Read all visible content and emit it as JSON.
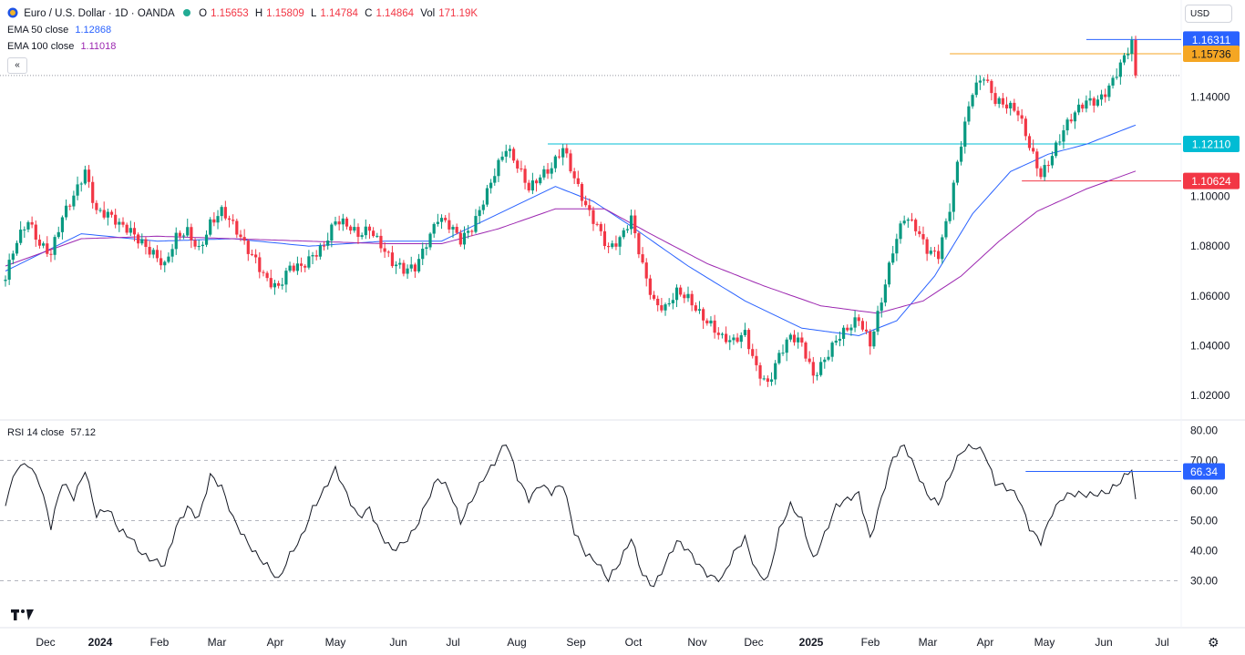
{
  "header": {
    "symbol_title": "Euro / U.S. Dollar · 1D · OANDA",
    "ohlc": {
      "o_label": "O",
      "o": "1.15653",
      "h_label": "H",
      "h": "1.15809",
      "l_label": "L",
      "l": "1.14784",
      "c_label": "C",
      "c": "1.14864",
      "vol_label": "Vol",
      "vol": "171.19K"
    },
    "ema50": {
      "label": "EMA 50 close",
      "value": "1.12868",
      "color": "#2962ff"
    },
    "ema100": {
      "label": "EMA 100 close",
      "value": "1.11018",
      "color": "#9c27b0"
    },
    "rsi": {
      "label": "RSI 14 close",
      "value": "57.12"
    },
    "currency_button": "USD",
    "collapse_glyph": "«"
  },
  "icons": {
    "flag": "eur-usd-flag-icon",
    "settings": "gear-icon",
    "brand": "tradingview-logo"
  },
  "colors": {
    "up": "#089981",
    "down": "#f23645",
    "ema50": "#2962ff",
    "ema100": "#9c27b0",
    "rsi": "#131722"
  },
  "chart_data": [
    {
      "type": "candlestick",
      "title": "Euro / U.S. Dollar · 1D · OANDA",
      "yticks": [
        "1.02000",
        "1.04000",
        "1.06000",
        "1.08000",
        "1.10000",
        "1.14000"
      ],
      "ylim": [
        1.0134,
        1.168
      ],
      "xticks": [
        "Dec",
        "2024",
        "Feb",
        "Mar",
        "Apr",
        "May",
        "Jun",
        "Jul",
        "Aug",
        "Sep",
        "Oct",
        "Nov",
        "Dec",
        "2025",
        "Feb",
        "Mar",
        "Apr",
        "May",
        "Jun",
        "Jul"
      ],
      "price_path": [
        [
          0,
          1.066
        ],
        [
          3,
          1.082
        ],
        [
          6,
          1.092
        ],
        [
          9,
          1.082
        ],
        [
          12,
          1.076
        ],
        [
          15,
          1.09
        ],
        [
          18,
          1.1
        ],
        [
          21,
          1.112
        ],
        [
          24,
          1.095
        ],
        [
          27,
          1.092
        ],
        [
          30,
          1.087
        ],
        [
          33,
          1.086
        ],
        [
          36,
          1.083
        ],
        [
          39,
          1.078
        ],
        [
          42,
          1.071
        ],
        [
          45,
          1.082
        ],
        [
          48,
          1.086
        ],
        [
          51,
          1.08
        ],
        [
          54,
          1.09
        ],
        [
          57,
          1.093
        ],
        [
          60,
          1.087
        ],
        [
          63,
          1.081
        ],
        [
          66,
          1.076
        ],
        [
          69,
          1.067
        ],
        [
          72,
          1.062
        ],
        [
          75,
          1.07
        ],
        [
          78,
          1.072
        ],
        [
          81,
          1.078
        ],
        [
          84,
          1.081
        ],
        [
          87,
          1.089
        ],
        [
          90,
          1.087
        ],
        [
          93,
          1.085
        ],
        [
          96,
          1.089
        ],
        [
          99,
          1.081
        ],
        [
          102,
          1.072
        ],
        [
          105,
          1.069
        ],
        [
          108,
          1.072
        ],
        [
          111,
          1.083
        ],
        [
          114,
          1.092
        ],
        [
          117,
          1.087
        ],
        [
          120,
          1.081
        ],
        [
          123,
          1.088
        ],
        [
          126,
          1.1
        ],
        [
          129,
          1.11
        ],
        [
          132,
          1.118
        ],
        [
          135,
          1.111
        ],
        [
          138,
          1.104
        ],
        [
          141,
          1.11
        ],
        [
          144,
          1.112
        ],
        [
          147,
          1.118
        ],
        [
          150,
          1.106
        ],
        [
          153,
          1.097
        ],
        [
          156,
          1.09
        ],
        [
          159,
          1.079
        ],
        [
          162,
          1.081
        ],
        [
          165,
          1.09
        ],
        [
          168,
          1.073
        ],
        [
          171,
          1.059
        ],
        [
          174,
          1.055
        ],
        [
          177,
          1.06
        ],
        [
          180,
          1.058
        ],
        [
          183,
          1.054
        ],
        [
          186,
          1.05
        ],
        [
          189,
          1.043
        ],
        [
          192,
          1.04
        ],
        [
          195,
          1.044
        ],
        [
          198,
          1.032
        ],
        [
          201,
          1.026
        ],
        [
          204,
          1.036
        ],
        [
          207,
          1.042
        ],
        [
          210,
          1.04
        ],
        [
          213,
          1.029
        ],
        [
          216,
          1.036
        ],
        [
          219,
          1.042
        ],
        [
          222,
          1.045
        ],
        [
          225,
          1.05
        ],
        [
          228,
          1.042
        ],
        [
          231,
          1.06
        ],
        [
          234,
          1.078
        ],
        [
          237,
          1.09
        ],
        [
          240,
          1.087
        ],
        [
          243,
          1.08
        ],
        [
          246,
          1.078
        ],
        [
          249,
          1.095
        ],
        [
          252,
          1.12
        ],
        [
          255,
          1.142
        ],
        [
          258,
          1.15
        ],
        [
          261,
          1.14
        ],
        [
          264,
          1.136
        ],
        [
          267,
          1.132
        ],
        [
          270,
          1.12
        ],
        [
          273,
          1.11
        ],
        [
          276,
          1.118
        ],
        [
          279,
          1.126
        ],
        [
          282,
          1.132
        ],
        [
          285,
          1.138
        ],
        [
          288,
          1.14
        ],
        [
          291,
          1.145
        ],
        [
          294,
          1.152
        ],
        [
          297,
          1.16
        ],
        [
          298,
          1.149
        ]
      ],
      "series": [
        {
          "name": "EMA 50 close",
          "values": [
            [
              0,
              1.07
            ],
            [
              20,
              1.085
            ],
            [
              40,
              1.082
            ],
            [
              60,
              1.083
            ],
            [
              80,
              1.08
            ],
            [
              100,
              1.082
            ],
            [
              115,
              1.082
            ],
            [
              130,
              1.093
            ],
            [
              145,
              1.104
            ],
            [
              155,
              1.098
            ],
            [
              165,
              1.088
            ],
            [
              180,
              1.072
            ],
            [
              195,
              1.058
            ],
            [
              210,
              1.047
            ],
            [
              225,
              1.044
            ],
            [
              235,
              1.05
            ],
            [
              245,
              1.068
            ],
            [
              255,
              1.093
            ],
            [
              265,
              1.11
            ],
            [
              275,
              1.117
            ],
            [
              285,
              1.121
            ],
            [
              298,
              1.1287
            ]
          ]
        },
        {
          "name": "EMA 100 close",
          "values": [
            [
              0,
              1.072
            ],
            [
              20,
              1.083
            ],
            [
              40,
              1.084
            ],
            [
              60,
              1.083
            ],
            [
              80,
              1.082
            ],
            [
              100,
              1.081
            ],
            [
              115,
              1.081
            ],
            [
              130,
              1.087
            ],
            [
              145,
              1.095
            ],
            [
              158,
              1.095
            ],
            [
              170,
              1.085
            ],
            [
              185,
              1.073
            ],
            [
              200,
              1.064
            ],
            [
              215,
              1.056
            ],
            [
              230,
              1.053
            ],
            [
              242,
              1.058
            ],
            [
              252,
              1.068
            ],
            [
              262,
              1.082
            ],
            [
              272,
              1.094
            ],
            [
              285,
              1.103
            ],
            [
              298,
              1.1102
            ]
          ]
        }
      ],
      "horizontal_lines": [
        {
          "value": 1.16311,
          "label": "1.16311",
          "color": "#2962ff",
          "from": 285
        },
        {
          "value": 1.15736,
          "label": "1.15736",
          "color": "#f5a623",
          "from": 249
        },
        {
          "value": 1.1211,
          "label": "1.12110",
          "color": "#00bcd4",
          "from": 143
        },
        {
          "value": 1.10624,
          "label": "1.10624",
          "color": "#f23645",
          "from": 268
        }
      ],
      "last_price": 1.14864
    },
    {
      "type": "line",
      "title": "RSI 14 close",
      "yticks": [
        "80.00",
        "70.00",
        "60.00",
        "50.00",
        "40.00",
        "30.00"
      ],
      "ylim": [
        23.2,
        81.0
      ],
      "reference_lines": [
        70,
        50,
        30
      ],
      "rsi_path": [
        [
          0,
          55
        ],
        [
          3,
          68
        ],
        [
          6,
          70
        ],
        [
          9,
          63
        ],
        [
          12,
          47
        ],
        [
          15,
          62
        ],
        [
          18,
          58
        ],
        [
          21,
          68
        ],
        [
          24,
          52
        ],
        [
          27,
          53
        ],
        [
          30,
          46
        ],
        [
          33,
          45
        ],
        [
          36,
          40
        ],
        [
          39,
          37
        ],
        [
          42,
          34
        ],
        [
          45,
          47
        ],
        [
          48,
          55
        ],
        [
          51,
          52
        ],
        [
          54,
          65
        ],
        [
          57,
          60
        ],
        [
          60,
          50
        ],
        [
          63,
          45
        ],
        [
          66,
          40
        ],
        [
          69,
          35
        ],
        [
          72,
          29
        ],
        [
          75,
          38
        ],
        [
          78,
          45
        ],
        [
          81,
          55
        ],
        [
          84,
          60
        ],
        [
          87,
          66
        ],
        [
          90,
          58
        ],
        [
          93,
          52
        ],
        [
          96,
          55
        ],
        [
          99,
          45
        ],
        [
          102,
          39
        ],
        [
          105,
          42
        ],
        [
          108,
          48
        ],
        [
          111,
          57
        ],
        [
          114,
          64
        ],
        [
          117,
          59
        ],
        [
          120,
          49
        ],
        [
          123,
          58
        ],
        [
          126,
          65
        ],
        [
          129,
          69
        ],
        [
          132,
          75
        ],
        [
          135,
          64
        ],
        [
          138,
          58
        ],
        [
          141,
          63
        ],
        [
          144,
          59
        ],
        [
          147,
          61
        ],
        [
          150,
          46
        ],
        [
          153,
          40
        ],
        [
          156,
          37
        ],
        [
          159,
          30
        ],
        [
          162,
          35
        ],
        [
          165,
          44
        ],
        [
          168,
          33
        ],
        [
          171,
          29
        ],
        [
          174,
          35
        ],
        [
          177,
          42
        ],
        [
          180,
          40
        ],
        [
          183,
          36
        ],
        [
          186,
          32
        ],
        [
          189,
          30
        ],
        [
          192,
          38
        ],
        [
          195,
          44
        ],
        [
          198,
          34
        ],
        [
          201,
          31
        ],
        [
          204,
          46
        ],
        [
          207,
          54
        ],
        [
          210,
          50
        ],
        [
          213,
          38
        ],
        [
          216,
          46
        ],
        [
          219,
          54
        ],
        [
          222,
          56
        ],
        [
          225,
          59
        ],
        [
          228,
          45
        ],
        [
          231,
          58
        ],
        [
          234,
          70
        ],
        [
          237,
          74
        ],
        [
          240,
          67
        ],
        [
          243,
          60
        ],
        [
          246,
          56
        ],
        [
          249,
          64
        ],
        [
          252,
          72
        ],
        [
          255,
          75
        ],
        [
          258,
          74
        ],
        [
          261,
          63
        ],
        [
          264,
          60
        ],
        [
          267,
          57
        ],
        [
          270,
          48
        ],
        [
          273,
          44
        ],
        [
          276,
          53
        ],
        [
          279,
          57
        ],
        [
          282,
          58
        ],
        [
          285,
          59
        ],
        [
          288,
          60
        ],
        [
          291,
          60
        ],
        [
          294,
          62
        ],
        [
          297,
          66.34
        ],
        [
          298,
          57.12
        ]
      ],
      "marker": {
        "value": 66.34,
        "label": "66.34",
        "from": 269
      }
    }
  ]
}
